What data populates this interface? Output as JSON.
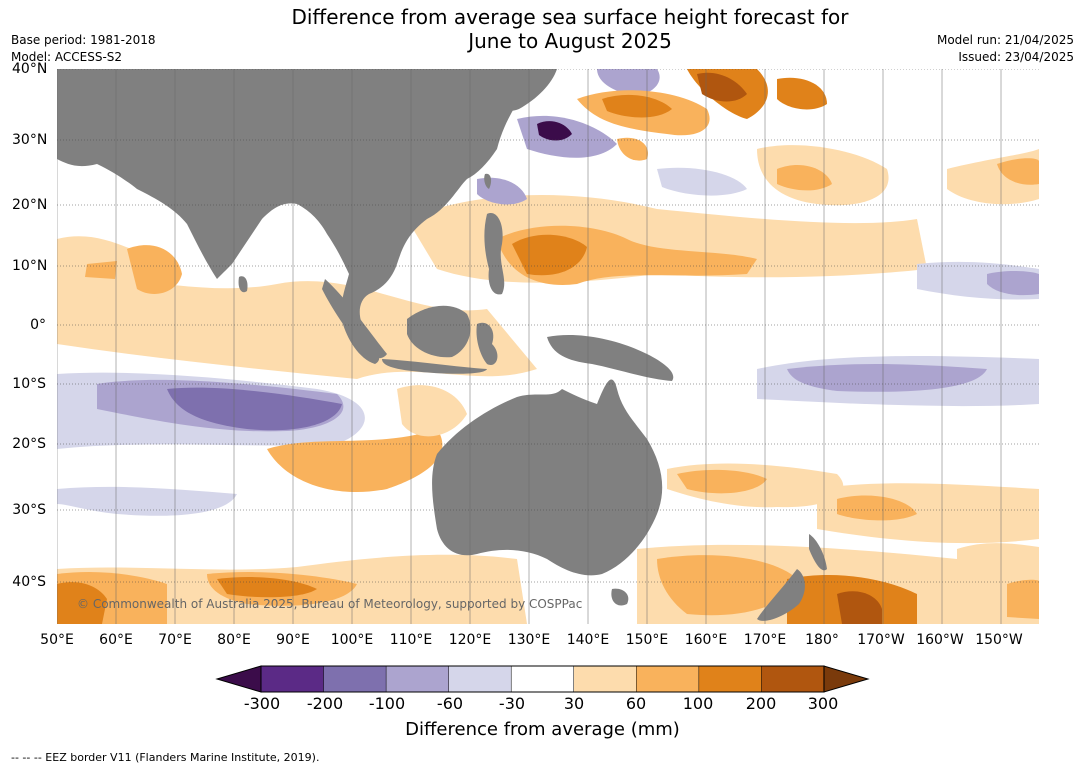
{
  "title_line1": "Difference from average sea surface height forecast for",
  "title_line2": "June to August 2025",
  "meta_left": {
    "base_period": "Base period: 1981-2018",
    "model": "Model: ACCESS-S2"
  },
  "meta_right": {
    "model_run": "Model run: 21/04/2025",
    "issued": "Issued: 23/04/2025"
  },
  "lat_labels": [
    "40°N",
    "30°N",
    "20°N",
    "10°N",
    "0°",
    "10°S",
    "20°S",
    "30°S",
    "40°S"
  ],
  "lon_labels": [
    "50°E",
    "60°E",
    "70°E",
    "80°E",
    "90°E",
    "100°E",
    "110°E",
    "120°E",
    "130°E",
    "140°E",
    "150°E",
    "160°E",
    "170°E",
    "180°",
    "170°W",
    "160°W",
    "150°W"
  ],
  "copyright": "© Commonwealth of Australia 2025, Bureau of Meteorology, supported by COSPPac",
  "colorbar": {
    "ticks": [
      "-300",
      "-200",
      "-100",
      "-60",
      "-30",
      "30",
      "60",
      "100",
      "200",
      "300"
    ],
    "colors": [
      "#3b0c4a",
      "#5b2a86",
      "#7e70ae",
      "#aca4cf",
      "#d5d6ea",
      "#ffffff",
      "#fddcad",
      "#f9b25c",
      "#e0821a",
      "#b0560f",
      "#7a3a0b"
    ],
    "label": "Difference from average (mm)"
  },
  "palette": {
    "land": "#808080",
    "grid": "#444444"
  },
  "footer": "--  --  -- EEZ border V11 (Flanders Marine Institute, 2019)."
}
